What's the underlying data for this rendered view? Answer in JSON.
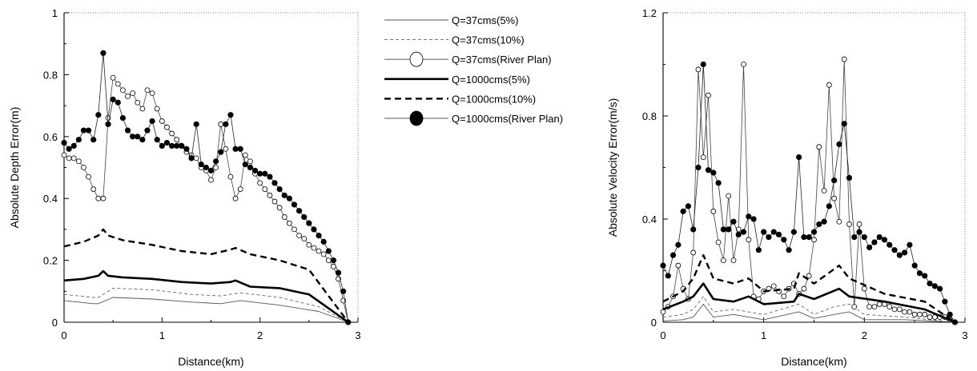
{
  "chart_data": [
    {
      "type": "line",
      "xlabel": "Distance(km)",
      "ylabel": "Absolute Depth Error(m)",
      "xlim": [
        0,
        3
      ],
      "ylim": [
        0,
        1
      ],
      "xticks": [
        0,
        1,
        2,
        3
      ],
      "xtick_labels": [
        "0",
        "1",
        "2",
        "3"
      ],
      "yticks": [
        0,
        0.2,
        0.4,
        0.6,
        0.8,
        1
      ],
      "ytick_labels": [
        "0",
        "0.2",
        "0.4",
        "0.6",
        "0.8",
        "1"
      ],
      "series": [
        {
          "name": "Q=37cms(5%)",
          "x": [
            0,
            0.3,
            0.35,
            0.5,
            0.9,
            1.3,
            1.6,
            1.8,
            2.2,
            2.6,
            2.9
          ],
          "y": [
            0.07,
            0.06,
            0.06,
            0.08,
            0.075,
            0.065,
            0.06,
            0.07,
            0.055,
            0.035,
            0
          ]
        },
        {
          "name": "Q=37cms(10%)",
          "x": [
            0,
            0.3,
            0.35,
            0.5,
            0.9,
            1.3,
            1.6,
            1.8,
            2.2,
            2.6,
            2.9
          ],
          "y": [
            0.09,
            0.08,
            0.08,
            0.11,
            0.105,
            0.09,
            0.085,
            0.095,
            0.08,
            0.05,
            0
          ]
        },
        {
          "name": "Q=37cms(River Plan)",
          "x": [
            0,
            0.05,
            0.1,
            0.15,
            0.2,
            0.25,
            0.3,
            0.35,
            0.4,
            0.45,
            0.5,
            0.55,
            0.6,
            0.65,
            0.7,
            0.75,
            0.8,
            0.85,
            0.9,
            0.95,
            1.0,
            1.05,
            1.1,
            1.15,
            1.2,
            1.25,
            1.3,
            1.35,
            1.4,
            1.45,
            1.5,
            1.55,
            1.6,
            1.65,
            1.7,
            1.75,
            1.8,
            1.85,
            1.9,
            1.95,
            2.0,
            2.05,
            2.1,
            2.15,
            2.2,
            2.25,
            2.3,
            2.35,
            2.4,
            2.45,
            2.5,
            2.55,
            2.6,
            2.65,
            2.7,
            2.75,
            2.8,
            2.85,
            2.9
          ],
          "y": [
            0.54,
            0.53,
            0.53,
            0.52,
            0.5,
            0.47,
            0.43,
            0.4,
            0.4,
            0.66,
            0.79,
            0.77,
            0.75,
            0.73,
            0.74,
            0.71,
            0.69,
            0.75,
            0.74,
            0.69,
            0.65,
            0.63,
            0.61,
            0.59,
            0.57,
            0.55,
            0.54,
            0.53,
            0.5,
            0.49,
            0.46,
            0.5,
            0.64,
            0.56,
            0.47,
            0.4,
            0.43,
            0.54,
            0.52,
            0.48,
            0.45,
            0.43,
            0.41,
            0.39,
            0.37,
            0.34,
            0.32,
            0.3,
            0.28,
            0.27,
            0.25,
            0.24,
            0.23,
            0.22,
            0.2,
            0.18,
            0.14,
            0.07,
            0
          ]
        },
        {
          "name": "Q=1000cms(5%)",
          "x": [
            0,
            0.2,
            0.35,
            0.4,
            0.45,
            0.6,
            0.9,
            1.2,
            1.5,
            1.7,
            1.75,
            1.9,
            2.2,
            2.5,
            2.9
          ],
          "y": [
            0.135,
            0.14,
            0.15,
            0.165,
            0.15,
            0.145,
            0.14,
            0.13,
            0.125,
            0.13,
            0.135,
            0.115,
            0.11,
            0.09,
            0
          ]
        },
        {
          "name": "Q=1000cms(10%)",
          "x": [
            0,
            0.2,
            0.35,
            0.4,
            0.45,
            0.6,
            0.9,
            1.2,
            1.5,
            1.7,
            1.75,
            1.9,
            2.2,
            2.5,
            2.9
          ],
          "y": [
            0.245,
            0.26,
            0.28,
            0.3,
            0.28,
            0.265,
            0.25,
            0.23,
            0.22,
            0.235,
            0.24,
            0.22,
            0.2,
            0.17,
            0
          ]
        },
        {
          "name": "Q=1000cms(River Plan)",
          "x": [
            0,
            0.05,
            0.1,
            0.15,
            0.2,
            0.25,
            0.3,
            0.35,
            0.4,
            0.45,
            0.5,
            0.55,
            0.6,
            0.65,
            0.7,
            0.75,
            0.8,
            0.85,
            0.9,
            0.95,
            1.0,
            1.05,
            1.1,
            1.15,
            1.2,
            1.25,
            1.3,
            1.35,
            1.4,
            1.45,
            1.5,
            1.55,
            1.6,
            1.65,
            1.7,
            1.75,
            1.8,
            1.85,
            1.9,
            1.95,
            2.0,
            2.05,
            2.1,
            2.15,
            2.2,
            2.25,
            2.3,
            2.35,
            2.4,
            2.45,
            2.5,
            2.55,
            2.6,
            2.65,
            2.7,
            2.75,
            2.8,
            2.85,
            2.9
          ],
          "y": [
            0.58,
            0.56,
            0.57,
            0.59,
            0.62,
            0.62,
            0.59,
            0.67,
            0.87,
            0.64,
            0.72,
            0.71,
            0.66,
            0.62,
            0.6,
            0.6,
            0.59,
            0.62,
            0.65,
            0.59,
            0.57,
            0.58,
            0.57,
            0.57,
            0.57,
            0.56,
            0.53,
            0.64,
            0.51,
            0.5,
            0.49,
            0.52,
            0.55,
            0.64,
            0.67,
            0.56,
            0.56,
            0.51,
            0.5,
            0.49,
            0.48,
            0.48,
            0.47,
            0.45,
            0.43,
            0.41,
            0.4,
            0.38,
            0.36,
            0.34,
            0.32,
            0.3,
            0.28,
            0.26,
            0.23,
            0.2,
            0.16,
            0.1,
            0
          ]
        }
      ]
    },
    {
      "type": "line",
      "xlabel": "Distance(km)",
      "ylabel": "Absolute Velocity Error(m/s)",
      "xlim": [
        0,
        3
      ],
      "ylim": [
        0,
        1.2
      ],
      "xticks": [
        0,
        1,
        2,
        3
      ],
      "xtick_labels": [
        "0",
        "1",
        "2",
        "3"
      ],
      "yticks": [
        0,
        0.4,
        0.8,
        1.2
      ],
      "ytick_labels": [
        "0",
        "0.4",
        "0.8",
        "1.2"
      ],
      "series": [
        {
          "name": "Q=37cms(5%)",
          "x": [
            0,
            0.2,
            0.3,
            0.4,
            0.5,
            0.7,
            0.85,
            1.0,
            1.35,
            1.5,
            1.7,
            1.85,
            2.0,
            2.4,
            2.9
          ],
          "y": [
            0.005,
            0.01,
            0.02,
            0.07,
            0.02,
            0.03,
            0.02,
            0.01,
            0.04,
            0.015,
            0.03,
            0.04,
            0.01,
            0.01,
            0
          ]
        },
        {
          "name": "Q=37cms(10%)",
          "x": [
            0,
            0.2,
            0.3,
            0.4,
            0.5,
            0.7,
            0.85,
            1.0,
            1.35,
            1.5,
            1.7,
            1.85,
            2.0,
            2.4,
            2.9
          ],
          "y": [
            0.02,
            0.03,
            0.05,
            0.1,
            0.04,
            0.05,
            0.04,
            0.03,
            0.07,
            0.03,
            0.06,
            0.07,
            0.03,
            0.02,
            0
          ]
        },
        {
          "name": "Q=37cms(River Plan)",
          "x": [
            0,
            0.05,
            0.1,
            0.15,
            0.2,
            0.25,
            0.3,
            0.35,
            0.4,
            0.45,
            0.5,
            0.55,
            0.6,
            0.65,
            0.7,
            0.75,
            0.8,
            0.85,
            0.9,
            0.95,
            1.0,
            1.05,
            1.1,
            1.15,
            1.2,
            1.25,
            1.3,
            1.35,
            1.4,
            1.45,
            1.5,
            1.55,
            1.6,
            1.65,
            1.7,
            1.75,
            1.8,
            1.85,
            1.9,
            1.95,
            2.0,
            2.05,
            2.1,
            2.15,
            2.2,
            2.25,
            2.3,
            2.35,
            2.4,
            2.45,
            2.5,
            2.55,
            2.6,
            2.65,
            2.7,
            2.75,
            2.8,
            2.85,
            2.9
          ],
          "y": [
            0.04,
            0.06,
            0.1,
            0.22,
            0.13,
            0.09,
            0.27,
            0.98,
            0.64,
            0.88,
            0.43,
            0.31,
            0.24,
            0.49,
            0.24,
            0.36,
            1.0,
            0.32,
            0.1,
            0.09,
            0.12,
            0.13,
            0.14,
            0.12,
            0.1,
            0.13,
            0.15,
            0.11,
            0.13,
            0.18,
            0.32,
            0.68,
            0.51,
            0.92,
            0.48,
            0.39,
            1.02,
            0.38,
            0.06,
            0.38,
            0.13,
            0.06,
            0.06,
            0.07,
            0.07,
            0.06,
            0.05,
            0.05,
            0.04,
            0.04,
            0.03,
            0.03,
            0.03,
            0.02,
            0.02,
            0.02,
            0.02,
            0.01,
            0
          ]
        },
        {
          "name": "Q=1000cms(5%)",
          "x": [
            0,
            0.2,
            0.3,
            0.4,
            0.5,
            0.7,
            0.85,
            1.0,
            1.3,
            1.35,
            1.5,
            1.75,
            1.85,
            2.2,
            2.6,
            2.9
          ],
          "y": [
            0.05,
            0.08,
            0.1,
            0.15,
            0.09,
            0.08,
            0.1,
            0.07,
            0.08,
            0.11,
            0.09,
            0.13,
            0.1,
            0.08,
            0.05,
            0
          ]
        },
        {
          "name": "Q=1000cms(10%)",
          "x": [
            0,
            0.2,
            0.3,
            0.4,
            0.5,
            0.7,
            0.85,
            1.0,
            1.3,
            1.35,
            1.5,
            1.75,
            1.85,
            2.2,
            2.6,
            2.9
          ],
          "y": [
            0.08,
            0.12,
            0.17,
            0.26,
            0.17,
            0.15,
            0.17,
            0.12,
            0.13,
            0.19,
            0.15,
            0.22,
            0.17,
            0.11,
            0.08,
            0
          ]
        },
        {
          "name": "Q=1000cms(River Plan)",
          "x": [
            0,
            0.05,
            0.1,
            0.15,
            0.2,
            0.25,
            0.3,
            0.35,
            0.4,
            0.45,
            0.5,
            0.55,
            0.6,
            0.65,
            0.7,
            0.75,
            0.8,
            0.85,
            0.9,
            0.95,
            1.0,
            1.05,
            1.1,
            1.15,
            1.2,
            1.25,
            1.3,
            1.35,
            1.4,
            1.45,
            1.5,
            1.55,
            1.6,
            1.65,
            1.7,
            1.75,
            1.8,
            1.85,
            1.9,
            1.95,
            2.0,
            2.05,
            2.1,
            2.15,
            2.2,
            2.25,
            2.3,
            2.35,
            2.4,
            2.45,
            2.5,
            2.55,
            2.6,
            2.65,
            2.7,
            2.75,
            2.8,
            2.85,
            2.9
          ],
          "y": [
            0.22,
            0.18,
            0.26,
            0.3,
            0.43,
            0.45,
            0.36,
            0.6,
            1.0,
            0.59,
            0.58,
            0.54,
            0.36,
            0.36,
            0.39,
            0.34,
            0.35,
            0.41,
            0.4,
            0.28,
            0.35,
            0.33,
            0.35,
            0.34,
            0.32,
            0.28,
            0.35,
            0.64,
            0.33,
            0.33,
            0.35,
            0.38,
            0.39,
            0.45,
            0.55,
            0.69,
            0.77,
            0.56,
            0.33,
            0.35,
            0.33,
            0.29,
            0.31,
            0.33,
            0.32,
            0.3,
            0.28,
            0.26,
            0.27,
            0.3,
            0.22,
            0.19,
            0.18,
            0.15,
            0.14,
            0.13,
            0.08,
            0.03,
            0
          ]
        }
      ]
    }
  ],
  "legend": {
    "entries": [
      {
        "label": "Q=37cms(5%)",
        "style": "thin-solid"
      },
      {
        "label": "Q=37cms(10%)",
        "style": "thin-dashed"
      },
      {
        "label": "Q=37cms(River Plan)",
        "style": "open-circle"
      },
      {
        "label": "Q=1000cms(5%)",
        "style": "thick-solid"
      },
      {
        "label": "Q=1000cms(10%)",
        "style": "thick-dashed"
      },
      {
        "label": "Q=1000cms(River Plan)",
        "style": "filled-circle"
      }
    ]
  }
}
